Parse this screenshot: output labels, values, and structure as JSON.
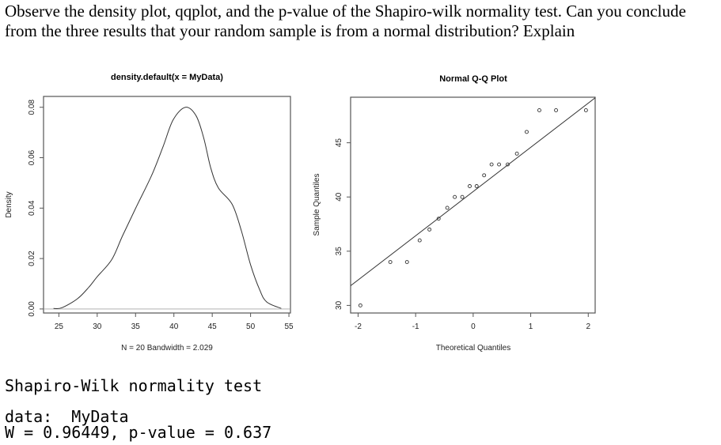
{
  "question": {
    "line1": "Observe the density plot, qqplot, and the p-value of the Shapiro-wilk normality test. Can you conclude",
    "line2": "from the three results that your random sample is from a normal distribution? Explain"
  },
  "chart_data": [
    {
      "type": "line",
      "title": "density.default(x = MyData)",
      "xlabel": "N = 20   Bandwidth = 2.029",
      "ylabel": "Density",
      "xticks": [
        "25",
        "30",
        "35",
        "40",
        "45",
        "50",
        "55"
      ],
      "yticks": [
        "0.00",
        "0.02",
        "0.04",
        "0.06",
        "0.08"
      ],
      "xlim": [
        23,
        55.2
      ],
      "ylim": [
        -0.0016,
        0.0843
      ],
      "baseline": 0,
      "x": [
        24.3,
        25.4,
        27.4,
        28.9,
        30.0,
        31.9,
        33.3,
        35.1,
        37.1,
        38.6,
        39.9,
        41.5,
        42.9,
        43.9,
        44.8,
        45.8,
        47.6,
        48.8,
        50.0,
        51.2,
        52.1,
        54.0
      ],
      "y": [
        0.0002,
        0.0005,
        0.004,
        0.0086,
        0.0128,
        0.0196,
        0.029,
        0.0405,
        0.053,
        0.0645,
        0.075,
        0.08,
        0.0766,
        0.0677,
        0.056,
        0.048,
        0.0415,
        0.031,
        0.0175,
        0.0075,
        0.0028,
        0.0002
      ]
    },
    {
      "type": "scatter",
      "title": "Normal Q-Q Plot",
      "xlabel": "Theoretical Quantiles",
      "ylabel": "Sample Quantiles",
      "xticks": [
        "-2",
        "-1",
        "0",
        "1",
        "2"
      ],
      "yticks": [
        "30",
        "35",
        "40",
        "45"
      ],
      "xlim": [
        -2.13,
        2.12
      ],
      "ylim": [
        29.3,
        49.2
      ],
      "x": [
        -1.96,
        -1.44,
        -1.15,
        -0.93,
        -0.76,
        -0.6,
        -0.45,
        -0.32,
        -0.19,
        -0.06,
        0.06,
        0.19,
        0.32,
        0.45,
        0.6,
        0.76,
        0.93,
        1.15,
        1.44,
        1.96
      ],
      "y": [
        30,
        34,
        34,
        36,
        37,
        38,
        39,
        40,
        40,
        41,
        41,
        42,
        43,
        43,
        43,
        44,
        46,
        48,
        48,
        48
      ],
      "reference_line": {
        "intercept": 40.5,
        "slope": 4.077
      }
    }
  ],
  "output": {
    "heading": "Shapiro-Wilk normality test",
    "data_line": "data:  MyData",
    "result_line": "W = 0.96449, p-value = 0.637"
  }
}
